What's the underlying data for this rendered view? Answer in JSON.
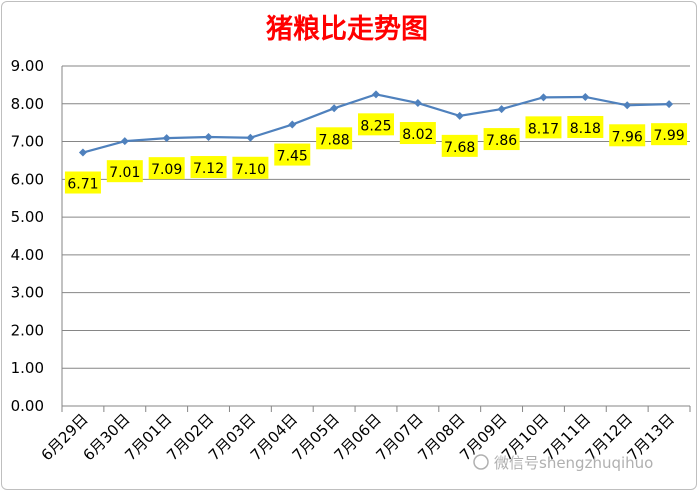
{
  "chart_data": {
    "type": "line",
    "title": "猪粮比走势图",
    "categories": [
      "6月29日",
      "6月30日",
      "7月01日",
      "7月02日",
      "7月03日",
      "7月04日",
      "7月05日",
      "7月06日",
      "7月07日",
      "7月08日",
      "7月09日",
      "7月10日",
      "7月11日",
      "7月12日",
      "7月13日"
    ],
    "values": [
      6.71,
      7.01,
      7.09,
      7.12,
      7.1,
      7.45,
      7.88,
      8.25,
      8.02,
      7.68,
      7.86,
      8.17,
      8.18,
      7.96,
      7.99
    ],
    "value_labels": [
      "6.71",
      "7.01",
      "7.09",
      "7.12",
      "7.10",
      "7.45",
      "7.88",
      "8.25",
      "8.02",
      "7.68",
      "7.86",
      "8.17",
      "8.18",
      "7.96",
      "7.99"
    ],
    "y_ticks": [
      "0.00",
      "1.00",
      "2.00",
      "3.00",
      "4.00",
      "5.00",
      "6.00",
      "7.00",
      "8.00",
      "9.00"
    ],
    "ylim": [
      0,
      9
    ],
    "grid": true,
    "line_color": "#4f81bd",
    "label_bg": "#ffff00"
  },
  "watermark": {
    "text": "微信号shengzhuqihuo"
  }
}
